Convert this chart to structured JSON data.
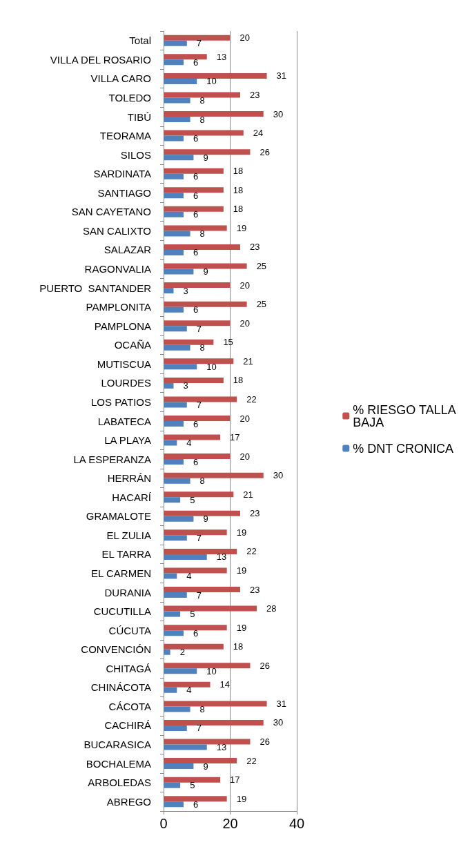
{
  "chart_data": {
    "type": "bar",
    "orientation": "horizontal",
    "categories": [
      "Total",
      "VILLA DEL ROSARIO",
      "VILLA CARO",
      "TOLEDO",
      "TIBÚ",
      "TEORAMA",
      "SILOS",
      "SARDINATA",
      "SANTIAGO",
      "SAN CAYETANO",
      "SAN CALIXTO",
      "SALAZAR",
      "RAGONVALIA",
      "PUERTO  SANTANDER",
      "PAMPLONITA",
      "PAMPLONA",
      "OCAÑA",
      "MUTISCUA",
      "LOURDES",
      "LOS PATIOS",
      "LABATECA",
      "LA PLAYA",
      "LA ESPERANZA",
      "HERRÁN",
      "HACARÍ",
      "GRAMALOTE",
      "EL ZULIA",
      "EL TARRA",
      "EL CARMEN",
      "DURANIA",
      "CUCUTILLA",
      "CÚCUTA",
      "CONVENCIÓN",
      "CHITAGÁ",
      "CHINÁCOTA",
      "CÁCOTA",
      "CACHIRÁ",
      "BUCARASICA",
      "BOCHALEMA",
      "ARBOLEDAS",
      "ABREGO"
    ],
    "series": [
      {
        "name": "% RIESGO TALLA BAJA",
        "color": "#c0504d",
        "values": [
          20,
          13,
          31,
          23,
          30,
          24,
          26,
          18,
          18,
          18,
          19,
          23,
          25,
          20,
          25,
          20,
          15,
          21,
          18,
          22,
          20,
          17,
          20,
          30,
          21,
          23,
          19,
          22,
          19,
          23,
          28,
          19,
          18,
          26,
          14,
          31,
          30,
          26,
          22,
          17,
          19
        ]
      },
      {
        "name": "% DNT CRONICA",
        "color": "#4f81bd",
        "values": [
          7,
          6,
          10,
          8,
          8,
          6,
          9,
          6,
          6,
          6,
          8,
          6,
          9,
          3,
          6,
          7,
          8,
          10,
          3,
          7,
          6,
          4,
          6,
          8,
          5,
          9,
          7,
          13,
          4,
          7,
          5,
          6,
          2,
          10,
          4,
          8,
          7,
          13,
          9,
          5,
          6
        ]
      }
    ],
    "xlim": [
      0,
      40
    ],
    "xticks": [
      0,
      20,
      40
    ],
    "grid": "x",
    "legend": "right",
    "data_labels": true
  }
}
